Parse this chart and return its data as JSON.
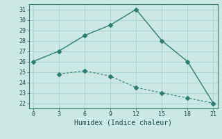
{
  "line1_x": [
    0,
    3,
    6,
    9,
    12,
    15,
    18,
    21
  ],
  "line1_y": [
    26,
    27,
    28.5,
    29.5,
    31,
    28,
    26,
    22
  ],
  "line2_x": [
    3,
    6,
    9,
    12,
    15,
    18,
    21
  ],
  "line2_y": [
    24.8,
    25.1,
    24.6,
    23.5,
    23.0,
    22.5,
    22
  ],
  "line_color": "#2e7d72",
  "bg_color": "#cce8e4",
  "xlabel": "Humidex (Indice chaleur)",
  "xlim": [
    -0.5,
    21.5
  ],
  "ylim": [
    21.5,
    31.5
  ],
  "xticks": [
    0,
    3,
    6,
    9,
    12,
    15,
    18,
    21
  ],
  "yticks": [
    22,
    23,
    24,
    25,
    26,
    27,
    28,
    29,
    30,
    31
  ],
  "grid_color": "#aad4ce",
  "marker": "D",
  "marker_size": 3,
  "line1_lw": 1.0,
  "line2_lw": 0.8,
  "tick_fontsize": 6.0,
  "label_fontsize": 7.0
}
